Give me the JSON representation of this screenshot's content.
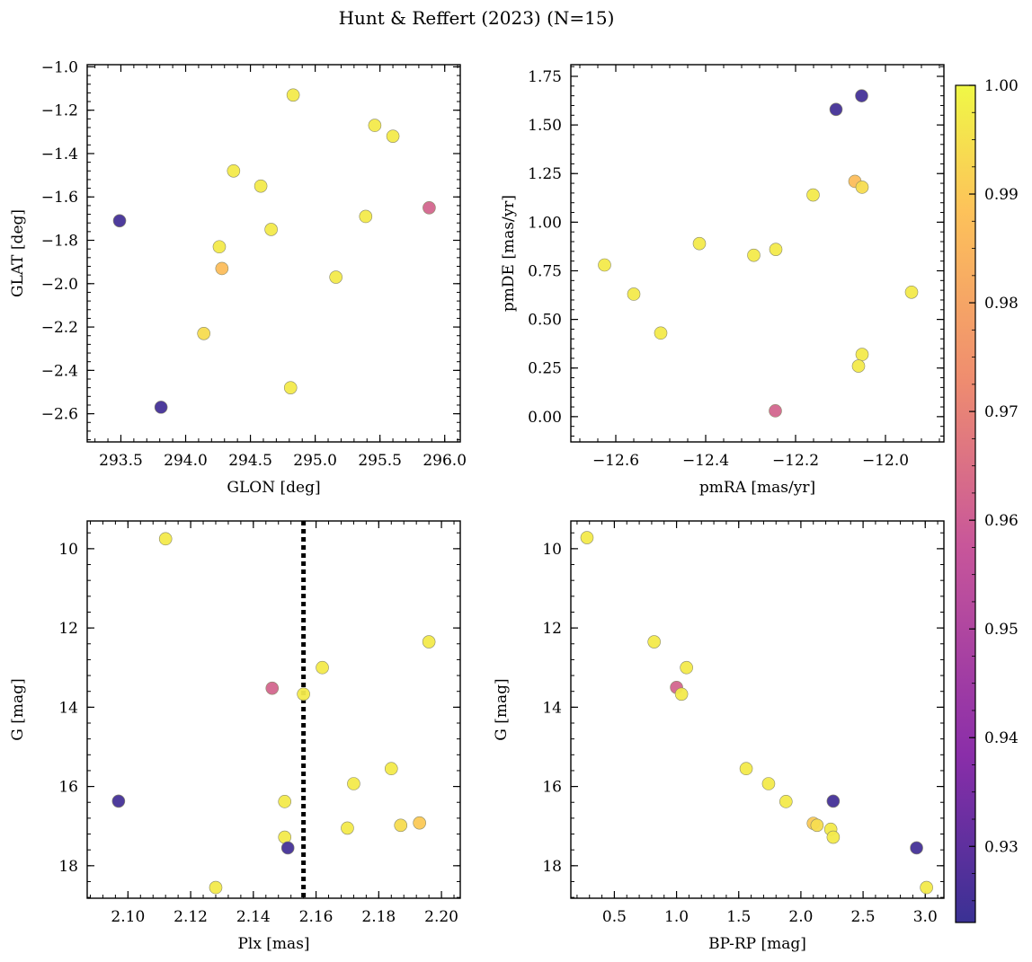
{
  "title": "Hunt & Reffert (2023) (N=15)",
  "colorbar": {
    "min": 0.923,
    "max": 1.0,
    "ticks": [
      0.93,
      0.94,
      0.95,
      0.96,
      0.97,
      0.98,
      0.99,
      1.0
    ],
    "tick_labels": [
      "0.93",
      "0.94",
      "0.95",
      "0.96",
      "0.97",
      "0.98",
      "0.99",
      "1.00"
    ],
    "colormap": "plasma",
    "colors": [
      "#3a3194",
      "#8a2ea9",
      "#c8569a",
      "#ef8d6f",
      "#fdc25a",
      "#f0f846"
    ]
  },
  "chart_data": [
    {
      "type": "scatter",
      "xlabel": "GLON [deg]",
      "ylabel": "GLAT [deg]",
      "xlim": [
        293.24,
        296.12
      ],
      "ylim": [
        -2.73,
        -0.99
      ],
      "xticks": [
        293.5,
        294.0,
        294.5,
        295.0,
        295.5,
        296.0
      ],
      "xtick_labels": [
        "293.5",
        "294.0",
        "294.5",
        "295.0",
        "295.5",
        "296.0"
      ],
      "yticks": [
        -2.6,
        -2.4,
        -2.2,
        -2.0,
        -1.8,
        -1.6,
        -1.4,
        -1.2,
        -1.0
      ],
      "ytick_labels": [
        "−2.6",
        "−2.4",
        "−2.2",
        "−2.0",
        "−1.8",
        "−1.6",
        "−1.4",
        "−1.2",
        "−1.0"
      ],
      "x": [
        294.83,
        295.46,
        295.6,
        294.37,
        294.58,
        293.49,
        295.88,
        295.39,
        294.66,
        294.26,
        294.28,
        295.16,
        294.14,
        293.81,
        294.81
      ],
      "y": [
        -1.13,
        -1.27,
        -1.32,
        -1.48,
        -1.55,
        -1.71,
        -1.65,
        -1.69,
        -1.75,
        -1.83,
        -1.93,
        -1.97,
        -2.23,
        -2.57,
        -2.48
      ],
      "c": [
        0.997,
        0.997,
        0.997,
        0.997,
        0.997,
        0.925,
        0.962,
        0.997,
        0.997,
        0.997,
        0.987,
        0.997,
        0.994,
        0.925,
        0.997
      ]
    },
    {
      "type": "scatter",
      "xlabel": "pmRA [mas/yr]",
      "ylabel": "pmDE [mas/yr]",
      "xlim": [
        -12.7,
        -11.87
      ],
      "ylim": [
        -0.13,
        1.81
      ],
      "xticks": [
        -12.6,
        -12.4,
        -12.2,
        -12.0
      ],
      "xtick_labels": [
        "−12.6",
        "−12.4",
        "−12.2",
        "−12.0"
      ],
      "yticks": [
        0.0,
        0.25,
        0.5,
        0.75,
        1.0,
        1.25,
        1.5,
        1.75
      ],
      "ytick_labels": [
        "0.00",
        "0.25",
        "0.50",
        "0.75",
        "1.00",
        "1.25",
        "1.50",
        "1.75"
      ],
      "x": [
        -12.053,
        -12.11,
        -12.068,
        -12.052,
        -12.161,
        -12.414,
        -12.244,
        -12.293,
        -12.625,
        -12.56,
        -12.5,
        -11.942,
        -12.052,
        -12.06,
        -12.245
      ],
      "y": [
        1.65,
        1.58,
        1.21,
        1.18,
        1.14,
        0.89,
        0.86,
        0.83,
        0.78,
        0.63,
        0.43,
        0.64,
        0.32,
        0.26,
        0.03
      ],
      "c": [
        0.925,
        0.925,
        0.987,
        0.994,
        0.997,
        0.997,
        0.997,
        0.997,
        0.997,
        0.997,
        0.997,
        0.997,
        0.997,
        0.997,
        0.962
      ]
    },
    {
      "type": "scatter",
      "xlabel": "Plx [mas]",
      "ylabel": "G [mag]",
      "xlim": [
        2.087,
        2.206
      ],
      "ylim": [
        18.82,
        9.3
      ],
      "xticks": [
        2.1,
        2.12,
        2.14,
        2.16,
        2.18,
        2.2
      ],
      "xtick_labels": [
        "2.10",
        "2.12",
        "2.14",
        "2.16",
        "2.18",
        "2.20"
      ],
      "yticks": [
        10,
        12,
        14,
        16,
        18
      ],
      "ytick_labels": [
        "10",
        "12",
        "14",
        "16",
        "18"
      ],
      "vline": 2.156,
      "x": [
        2.112,
        2.196,
        2.162,
        2.146,
        2.156,
        2.184,
        2.172,
        2.097,
        2.15,
        2.17,
        2.187,
        2.193,
        2.15,
        2.151,
        2.128
      ],
      "y": [
        9.75,
        12.35,
        13.0,
        13.52,
        13.67,
        15.55,
        15.93,
        16.37,
        16.38,
        17.05,
        16.98,
        16.92,
        17.28,
        17.55,
        18.55
      ],
      "c": [
        0.997,
        0.997,
        0.997,
        0.962,
        0.997,
        0.997,
        0.997,
        0.925,
        0.997,
        0.997,
        0.994,
        0.99,
        0.997,
        0.925,
        0.997
      ]
    },
    {
      "type": "scatter",
      "xlabel": "BP-RP [mag]",
      "ylabel": "G [mag]",
      "xlim": [
        0.15,
        3.15
      ],
      "ylim": [
        18.82,
        9.3
      ],
      "xticks": [
        0.5,
        1.0,
        1.5,
        2.0,
        2.5,
        3.0
      ],
      "xtick_labels": [
        "0.5",
        "1.0",
        "1.5",
        "2.0",
        "2.5",
        "3.0"
      ],
      "yticks": [
        10,
        12,
        14,
        16,
        18
      ],
      "ytick_labels": [
        "10",
        "12",
        "14",
        "16",
        "18"
      ],
      "x": [
        0.28,
        0.82,
        1.08,
        1.0,
        1.04,
        1.56,
        1.74,
        2.26,
        1.88,
        2.1,
        2.13,
        2.24,
        2.26,
        2.93,
        3.01
      ],
      "y": [
        9.72,
        12.35,
        13.0,
        13.5,
        13.67,
        15.55,
        15.93,
        16.37,
        16.38,
        16.93,
        16.98,
        17.08,
        17.28,
        17.55,
        18.55
      ],
      "c": [
        0.997,
        0.997,
        0.997,
        0.962,
        0.997,
        0.997,
        0.997,
        0.925,
        0.997,
        0.99,
        0.994,
        0.997,
        0.997,
        0.925,
        0.997
      ]
    }
  ]
}
